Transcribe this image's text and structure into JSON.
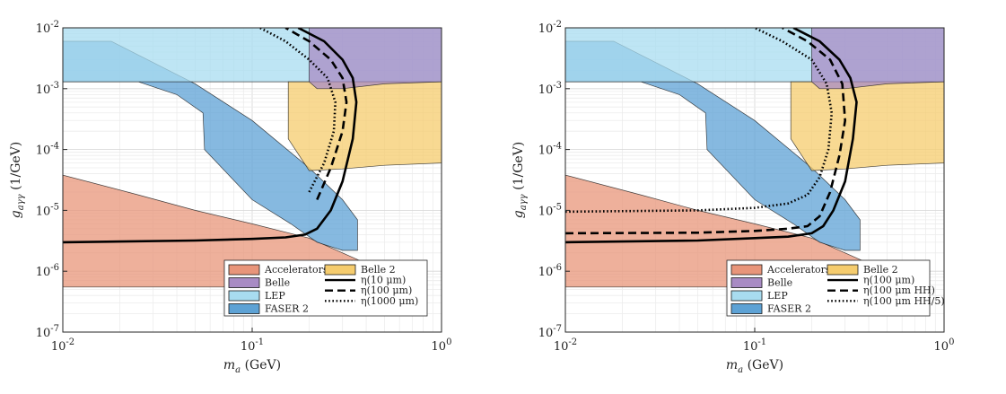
{
  "chart_data": [
    {
      "type": "area",
      "xlabel": "m_a (GeV)",
      "ylabel": "g_aγγ (1/GeV)",
      "xscale": "log",
      "yscale": "log",
      "xlim": [
        0.01,
        1
      ],
      "ylim": [
        1e-07,
        0.01
      ],
      "grid": true,
      "legend_position": "bottom-right",
      "xticks": [
        "10^-2",
        "10^-1",
        "10^0"
      ],
      "yticks": [
        "10^-7",
        "10^-6",
        "10^-5",
        "10^-4",
        "10^-3",
        "10^-2"
      ],
      "regions": [
        {
          "name": "Accelerators",
          "color": "#e8957a",
          "points": [
            [
              0.01,
              5.5e-07
            ],
            [
              0.01,
              3.8e-05
            ],
            [
              0.025,
              1.8e-05
            ],
            [
              0.05,
              1e-05
            ],
            [
              0.1,
              6e-06
            ],
            [
              0.2,
              3.5e-06
            ],
            [
              0.3,
              2e-06
            ],
            [
              0.37,
              1.5e-06
            ],
            [
              0.37,
              5.5e-07
            ]
          ]
        },
        {
          "name": "FASER 2",
          "color": "#5da2d5",
          "points": [
            [
              0.01,
              0.0013
            ],
            [
              0.01,
              0.006
            ],
            [
              0.018,
              0.006
            ],
            [
              0.05,
              0.0012
            ],
            [
              0.1,
              0.0003
            ],
            [
              0.2,
              5e-05
            ],
            [
              0.3,
              1.5e-05
            ],
            [
              0.36,
              7e-06
            ],
            [
              0.36,
              2.2e-06
            ],
            [
              0.3,
              2.2e-06
            ],
            [
              0.22,
              3e-06
            ],
            [
              0.16,
              6e-06
            ],
            [
              0.1,
              1.5e-05
            ],
            [
              0.056,
              0.0001
            ],
            [
              0.055,
              0.0004
            ],
            [
              0.04,
              0.0008
            ],
            [
              0.025,
              0.0013
            ]
          ]
        },
        {
          "name": "LEP",
          "color": "#a8dcf0",
          "points": [
            [
              0.01,
              0.0013
            ],
            [
              0.01,
              0.01
            ],
            [
              1,
              0.01
            ],
            [
              1,
              0.0013
            ]
          ]
        },
        {
          "name": "Belle 2",
          "color": "#f5cc6e",
          "points": [
            [
              0.155,
              0.0013
            ],
            [
              0.155,
              0.00015
            ],
            [
              0.2,
              4.5e-05
            ],
            [
              0.3,
              4.8e-05
            ],
            [
              0.5,
              5.5e-05
            ],
            [
              1,
              6e-05
            ],
            [
              1,
              0.0013
            ]
          ]
        },
        {
          "name": "Belle",
          "color": "#a88bc4",
          "points": [
            [
              0.2,
              0.01
            ],
            [
              0.2,
              0.0013
            ],
            [
              0.22,
              0.001
            ],
            [
              0.3,
              0.001
            ],
            [
              0.5,
              0.0012
            ],
            [
              1,
              0.0013
            ],
            [
              1,
              0.01
            ]
          ]
        }
      ],
      "series": [
        {
          "name": "η(10 μm)",
          "style": "solid",
          "points": [
            [
              0.01,
              3e-06
            ],
            [
              0.05,
              3.2e-06
            ],
            [
              0.1,
              3.4e-06
            ],
            [
              0.15,
              3.6e-06
            ],
            [
              0.19,
              4e-06
            ],
            [
              0.22,
              5e-06
            ],
            [
              0.26,
              1e-05
            ],
            [
              0.3,
              3e-05
            ],
            [
              0.34,
              0.00015
            ],
            [
              0.355,
              0.0006
            ],
            [
              0.34,
              0.0015
            ],
            [
              0.3,
              0.003
            ],
            [
              0.24,
              0.006
            ],
            [
              0.175,
              0.01
            ]
          ]
        },
        {
          "name": "η(100 μm)",
          "style": "dashed",
          "points": [
            [
              0.22,
              1.5e-05
            ],
            [
              0.26,
              5e-05
            ],
            [
              0.3,
              0.0002
            ],
            [
              0.315,
              0.0006
            ],
            [
              0.3,
              0.0015
            ],
            [
              0.26,
              0.003
            ],
            [
              0.2,
              0.006
            ],
            [
              0.15,
              0.01
            ]
          ]
        },
        {
          "name": "η(1000 μm)",
          "style": "dotted",
          "points": [
            [
              0.2,
              2e-05
            ],
            [
              0.24,
              6e-05
            ],
            [
              0.27,
              0.0002
            ],
            [
              0.275,
              0.0006
            ],
            [
              0.25,
              0.0015
            ],
            [
              0.2,
              0.003
            ],
            [
              0.15,
              0.006
            ],
            [
              0.11,
              0.01
            ]
          ]
        }
      ],
      "legend": [
        "Accelerators",
        "Belle",
        "LEP",
        "FASER 2",
        "Belle 2",
        "η(10 μm)",
        "η(100 μm)",
        "η(1000 μm)"
      ]
    },
    {
      "type": "area",
      "xlabel": "m_a (GeV)",
      "ylabel": "g_aγγ (1/GeV)",
      "xscale": "log",
      "yscale": "log",
      "xlim": [
        0.01,
        1
      ],
      "ylim": [
        1e-07,
        0.01
      ],
      "grid": true,
      "legend_position": "bottom-right",
      "xticks": [
        "10^-2",
        "10^-1",
        "10^0"
      ],
      "yticks": [
        "10^-7",
        "10^-6",
        "10^-5",
        "10^-4",
        "10^-3",
        "10^-2"
      ],
      "regions": [
        {
          "name": "Accelerators",
          "color": "#e8957a",
          "points": [
            [
              0.01,
              5.5e-07
            ],
            [
              0.01,
              3.8e-05
            ],
            [
              0.025,
              1.8e-05
            ],
            [
              0.05,
              1e-05
            ],
            [
              0.1,
              6e-06
            ],
            [
              0.2,
              3.5e-06
            ],
            [
              0.3,
              2e-06
            ],
            [
              0.37,
              1.5e-06
            ],
            [
              0.37,
              5.5e-07
            ]
          ]
        },
        {
          "name": "FASER 2",
          "color": "#5da2d5",
          "points": [
            [
              0.01,
              0.0013
            ],
            [
              0.01,
              0.006
            ],
            [
              0.018,
              0.006
            ],
            [
              0.05,
              0.0012
            ],
            [
              0.1,
              0.0003
            ],
            [
              0.2,
              5e-05
            ],
            [
              0.3,
              1.5e-05
            ],
            [
              0.36,
              7e-06
            ],
            [
              0.36,
              2.2e-06
            ],
            [
              0.3,
              2.2e-06
            ],
            [
              0.22,
              3e-06
            ],
            [
              0.16,
              6e-06
            ],
            [
              0.1,
              1.5e-05
            ],
            [
              0.056,
              0.0001
            ],
            [
              0.055,
              0.0004
            ],
            [
              0.04,
              0.0008
            ],
            [
              0.025,
              0.0013
            ]
          ]
        },
        {
          "name": "LEP",
          "color": "#a8dcf0",
          "points": [
            [
              0.01,
              0.0013
            ],
            [
              0.01,
              0.01
            ],
            [
              1,
              0.01
            ],
            [
              1,
              0.0013
            ]
          ]
        },
        {
          "name": "Belle 2",
          "color": "#f5cc6e",
          "points": [
            [
              0.155,
              0.0013
            ],
            [
              0.155,
              0.00015
            ],
            [
              0.2,
              4.5e-05
            ],
            [
              0.3,
              4.8e-05
            ],
            [
              0.5,
              5.5e-05
            ],
            [
              1,
              6e-05
            ],
            [
              1,
              0.0013
            ]
          ]
        },
        {
          "name": "Belle",
          "color": "#a88bc4",
          "points": [
            [
              0.2,
              0.01
            ],
            [
              0.2,
              0.0013
            ],
            [
              0.22,
              0.001
            ],
            [
              0.3,
              0.001
            ],
            [
              0.5,
              0.0012
            ],
            [
              1,
              0.0013
            ],
            [
              1,
              0.01
            ]
          ]
        }
      ],
      "series": [
        {
          "name": "η(100 μm)",
          "style": "solid",
          "points": [
            [
              0.01,
              3e-06
            ],
            [
              0.05,
              3.2e-06
            ],
            [
              0.1,
              3.5e-06
            ],
            [
              0.15,
              3.7e-06
            ],
            [
              0.2,
              4.2e-06
            ],
            [
              0.23,
              5.5e-06
            ],
            [
              0.26,
              1e-05
            ],
            [
              0.3,
              3e-05
            ],
            [
              0.33,
              0.00015
            ],
            [
              0.345,
              0.0006
            ],
            [
              0.32,
              0.0015
            ],
            [
              0.28,
              0.003
            ],
            [
              0.22,
              0.006
            ],
            [
              0.16,
              0.01
            ]
          ]
        },
        {
          "name": "η(100 μm HH)",
          "style": "dashed",
          "points": [
            [
              0.01,
              4.2e-06
            ],
            [
              0.05,
              4.3e-06
            ],
            [
              0.1,
              4.6e-06
            ],
            [
              0.15,
              5e-06
            ],
            [
              0.19,
              5.5e-06
            ],
            [
              0.22,
              8e-06
            ],
            [
              0.25,
              2e-05
            ],
            [
              0.28,
              8e-05
            ],
            [
              0.3,
              0.0003
            ],
            [
              0.29,
              0.0012
            ],
            [
              0.25,
              0.003
            ],
            [
              0.19,
              0.006
            ],
            [
              0.14,
              0.01
            ]
          ]
        },
        {
          "name": "η(100 μm HH/5)",
          "style": "dotted",
          "points": [
            [
              0.01,
              9.5e-06
            ],
            [
              0.05,
              1e-05
            ],
            [
              0.1,
              1.1e-05
            ],
            [
              0.15,
              1.3e-05
            ],
            [
              0.19,
              1.8e-05
            ],
            [
              0.22,
              3.5e-05
            ],
            [
              0.245,
              0.0001
            ],
            [
              0.255,
              0.0004
            ],
            [
              0.24,
              0.0012
            ],
            [
              0.2,
              0.003
            ],
            [
              0.14,
              0.006
            ],
            [
              0.1,
              0.01
            ]
          ]
        }
      ],
      "legend": [
        "Accelerators",
        "Belle",
        "LEP",
        "FASER 2",
        "Belle 2",
        "η(100 μm)",
        "η(100 μm HH)",
        "η(100 μm HH/5)"
      ]
    }
  ]
}
